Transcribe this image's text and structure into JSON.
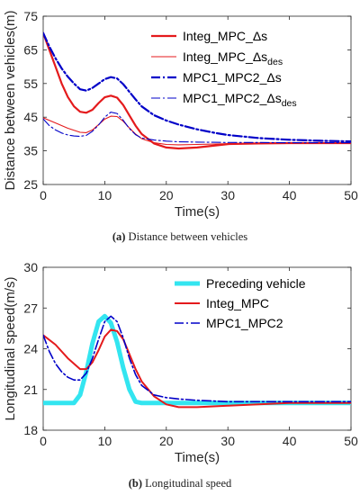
{
  "chart_data": [
    {
      "type": "line",
      "caption_letter": "(a)",
      "caption_text": "Distance between vehicles",
      "xlabel": "Time(s)",
      "ylabel": "Distance between vehicles(m)",
      "xlim": [
        0,
        50
      ],
      "ylim": [
        25,
        75
      ],
      "xticks": [
        0,
        10,
        20,
        30,
        40,
        50
      ],
      "yticks": [
        25,
        35,
        45,
        55,
        65,
        75
      ],
      "legend_position": "top-right",
      "series": [
        {
          "name": "Integ_MPC_Δs",
          "name_main": "Integ_MPC_Δs",
          "name_sub": "",
          "color": "#e41a1c",
          "style": "solid",
          "width": 2.2,
          "x": [
            0,
            1,
            2,
            3,
            4,
            5,
            6,
            7,
            8,
            9,
            10,
            11,
            12,
            13,
            14,
            15,
            16,
            18,
            20,
            22,
            25,
            28,
            30,
            35,
            40,
            45,
            50
          ],
          "y": [
            70,
            65,
            60,
            55,
            51,
            48.2,
            46.6,
            46.3,
            47.2,
            49.2,
            50.9,
            51.4,
            50.8,
            48.6,
            45.5,
            42.5,
            40,
            37.2,
            36,
            35.7,
            36,
            36.6,
            37,
            37.2,
            37.3,
            37.3,
            37.3
          ]
        },
        {
          "name": "Integ_MPC_Δs_des",
          "name_main": "Integ_MPC_Δs",
          "name_sub": "des",
          "color": "#e41a1c",
          "style": "solid",
          "width": 1.1,
          "x": [
            0,
            2,
            4,
            6,
            7,
            8,
            9,
            10,
            11,
            12,
            13,
            14,
            15,
            16,
            18,
            20,
            22,
            25,
            30,
            35,
            40,
            45,
            50
          ],
          "y": [
            44.8,
            43.3,
            41.7,
            40.5,
            40.4,
            41.2,
            42.8,
            44.4,
            45.3,
            45.2,
            43.8,
            41.8,
            40,
            38.6,
            37.4,
            36.9,
            36.8,
            36.9,
            37.1,
            37.2,
            37.3,
            37.3,
            37.3
          ]
        },
        {
          "name": "MPC1_MPC2_Δs",
          "name_main": "MPC1_MPC2_Δs",
          "name_sub": "",
          "color": "#0000c8",
          "style": "dashdot",
          "width": 2.2,
          "x": [
            0,
            1,
            2,
            3,
            4,
            5,
            6,
            7,
            8,
            9,
            10,
            11,
            12,
            13,
            14,
            15,
            16,
            18,
            20,
            22,
            25,
            28,
            30,
            35,
            40,
            45,
            50
          ],
          "y": [
            70,
            66,
            62.5,
            59.5,
            57,
            55,
            53.3,
            52.9,
            53.7,
            55,
            56.3,
            56.9,
            56.5,
            54.8,
            52.5,
            50.3,
            48.2,
            45.6,
            44,
            42.8,
            41.4,
            40.3,
            39.7,
            38.8,
            38.3,
            38,
            37.8
          ]
        },
        {
          "name": "MPC1_MPC2_Δs_des",
          "name_main": "MPC1_MPC2_Δs",
          "name_sub": "des",
          "color": "#0000c8",
          "style": "dashdot",
          "width": 1.1,
          "x": [
            0,
            1,
            2,
            3,
            4,
            5,
            6,
            7,
            8,
            9,
            10,
            11,
            12,
            13,
            14,
            15,
            16,
            18,
            20,
            22,
            25,
            30,
            35,
            40,
            45,
            50
          ],
          "y": [
            44.5,
            42.5,
            41.2,
            40.3,
            39.7,
            39.4,
            39.3,
            39.6,
            40.8,
            42.7,
            45,
            46.5,
            46.1,
            44.1,
            41.6,
            39.8,
            38.8,
            38.2,
            37.9,
            37.7,
            37.6,
            37.5,
            37.5,
            37.4,
            37.4,
            37.4
          ]
        }
      ]
    },
    {
      "type": "line",
      "caption_letter": "(b)",
      "caption_text": "Longitudinal speed",
      "xlabel": "Time(s)",
      "ylabel": "Longitudinal speed(m/s)",
      "xlim": [
        0,
        50
      ],
      "ylim": [
        18,
        30
      ],
      "xticks": [
        0,
        10,
        20,
        30,
        40,
        50
      ],
      "yticks": [
        18,
        21,
        24,
        27,
        30
      ],
      "legend_position": "top-right",
      "series": [
        {
          "name": "Preceding vehicle",
          "name_main": "Preceding vehicle",
          "name_sub": "",
          "color": "#33e5f0",
          "style": "solid",
          "width": 5,
          "x": [
            0,
            5,
            6,
            7,
            8,
            9,
            10,
            11,
            12,
            13,
            14,
            15,
            16,
            20,
            30,
            40,
            50
          ],
          "y": [
            20,
            20,
            20.6,
            22.3,
            24.4,
            26,
            26.4,
            25.9,
            24.5,
            22.6,
            21,
            20.1,
            20,
            20,
            20,
            20,
            20
          ]
        },
        {
          "name": "Integ_MPC",
          "name_main": "Integ_MPC",
          "name_sub": "",
          "color": "#e41a1c",
          "style": "solid",
          "width": 2,
          "x": [
            0,
            2,
            4,
            6,
            7,
            8,
            9,
            10,
            11,
            12,
            13,
            14,
            15,
            16,
            18,
            20,
            22,
            25,
            30,
            35,
            40,
            45,
            50
          ],
          "y": [
            25,
            24.3,
            23.3,
            22.5,
            22.5,
            23,
            23.9,
            24.9,
            25.4,
            25.3,
            24.7,
            23.6,
            22.5,
            21.6,
            20.5,
            19.9,
            19.7,
            19.7,
            19.8,
            19.9,
            20,
            20,
            20
          ]
        },
        {
          "name": "MPC1_MPC2",
          "name_main": "MPC1_MPC2",
          "name_sub": "",
          "color": "#0000c8",
          "style": "dashdot",
          "width": 1.6,
          "x": [
            0,
            1,
            2,
            3,
            4,
            5,
            6,
            7,
            8,
            9,
            10,
            11,
            12,
            13,
            14,
            15,
            16,
            18,
            20,
            22,
            25,
            30,
            35,
            40,
            45,
            50
          ],
          "y": [
            25,
            23.8,
            22.9,
            22.3,
            21.9,
            21.7,
            21.7,
            22.2,
            23.3,
            24.7,
            26,
            26.4,
            26,
            24.8,
            23.3,
            22.1,
            21.3,
            20.6,
            20.4,
            20.3,
            20.2,
            20.1,
            20.1,
            20.1,
            20.1,
            20.1
          ]
        }
      ]
    }
  ]
}
